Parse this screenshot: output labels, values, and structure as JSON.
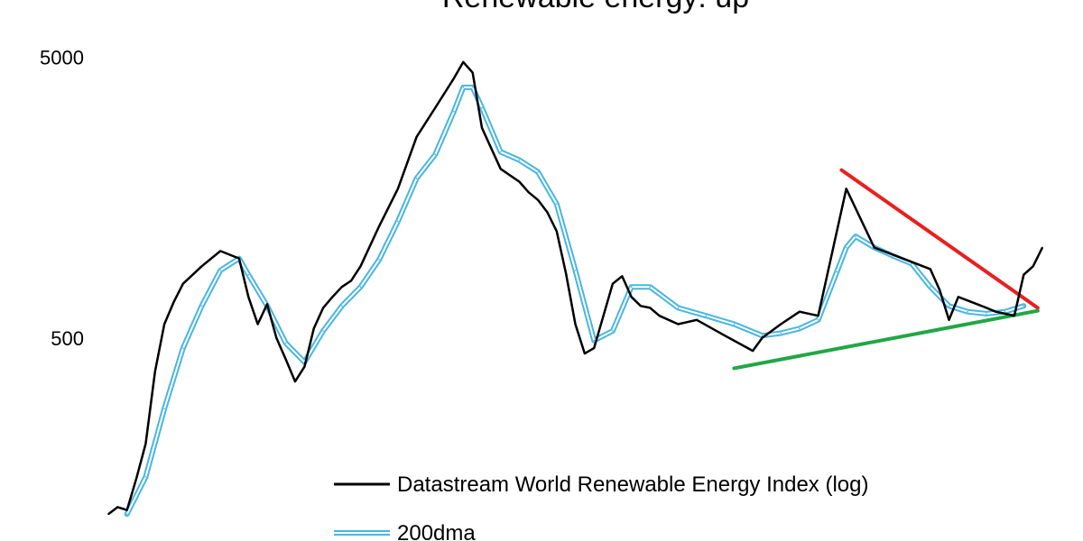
{
  "chart_data": {
    "type": "line",
    "title": "Renewable energy: up",
    "y_scale": "log",
    "ylim": [
      105,
      5200
    ],
    "y_ticks": [
      {
        "value": 5000,
        "label": "5000"
      },
      {
        "value": 500,
        "label": "500"
      }
    ],
    "x_range": [
      0,
      100
    ],
    "grid": false,
    "legend_position": "bottom-center",
    "series": [
      {
        "name": "Datastream World Renewable Energy Index (log)",
        "color": "#000000",
        "style": "solid",
        "x": [
          0,
          1,
          2,
          3,
          4,
          5,
          6,
          7,
          8,
          10,
          12,
          14,
          15,
          16,
          17,
          18,
          19,
          20,
          21,
          22,
          23,
          24,
          25,
          26,
          27,
          29,
          31,
          33,
          35,
          37,
          38,
          39,
          40,
          42,
          44,
          45,
          46,
          47,
          48,
          49,
          50,
          51,
          52,
          53,
          54,
          55,
          56,
          57,
          58,
          59,
          61,
          63,
          66,
          69,
          70,
          72,
          74,
          76,
          79,
          82,
          85,
          88,
          89,
          90,
          91,
          93,
          94,
          95,
          96,
          97,
          98,
          99,
          100
        ],
        "y": [
          118,
          125,
          122,
          158,
          210,
          380,
          560,
          670,
          780,
          900,
          1020,
          960,
          700,
          560,
          660,
          500,
          420,
          350,
          395,
          540,
          640,
          700,
          760,
          800,
          900,
          1250,
          1700,
          2600,
          3300,
          4200,
          4800,
          4400,
          2800,
          2000,
          1800,
          1650,
          1550,
          1400,
          1200,
          850,
          560,
          440,
          460,
          600,
          780,
          830,
          700,
          650,
          640,
          600,
          560,
          580,
          510,
          450,
          500,
          560,
          620,
          600,
          1700,
          1050,
          960,
          880,
          740,
          580,
          700,
          660,
          640,
          620,
          610,
          600,
          840,
          900,
          1050
        ]
      },
      {
        "name": "200dma",
        "color": "#48b6e0",
        "style": "double",
        "x": [
          2,
          4,
          6,
          8,
          10,
          12,
          14,
          15,
          17,
          19,
          21,
          23,
          25,
          27,
          29,
          31,
          33,
          35,
          37,
          38,
          39,
          40,
          42,
          44,
          46,
          48,
          50,
          52,
          54,
          56,
          58,
          61,
          64,
          67,
          70,
          72,
          74,
          76,
          78,
          79,
          80,
          82,
          84,
          86,
          88,
          90,
          92,
          94,
          96,
          98
        ],
        "y": [
          118,
          160,
          280,
          460,
          650,
          870,
          960,
          840,
          650,
          480,
          410,
          530,
          650,
          760,
          950,
          1300,
          1850,
          2250,
          3200,
          3900,
          3900,
          3300,
          2300,
          2150,
          1950,
          1500,
          870,
          490,
          530,
          760,
          760,
          640,
          600,
          560,
          510,
          520,
          540,
          580,
          860,
          1050,
          1150,
          1050,
          980,
          920,
          760,
          650,
          620,
          610,
          620,
          650
        ]
      }
    ],
    "annotations": [
      {
        "name": "resistance-trendline",
        "color": "#e8201d",
        "from": {
          "x": 78.5,
          "y": 1980
        },
        "to": {
          "x": 99.5,
          "y": 640
        }
      },
      {
        "name": "support-trendline",
        "color": "#21a744",
        "from": {
          "x": 67,
          "y": 390
        },
        "to": {
          "x": 99.5,
          "y": 625
        }
      }
    ]
  }
}
